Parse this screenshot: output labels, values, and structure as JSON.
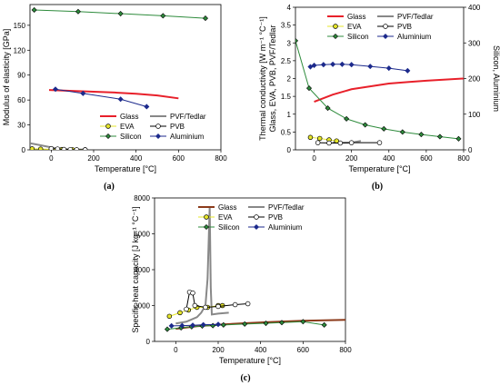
{
  "colors": {
    "Glass": "#e8202a",
    "PVF/Tedlar": "#888888",
    "EVA": "#e6e62a",
    "PVB": "#ffffff",
    "Silicon": "#2e8b3c",
    "Aluminium": "#1c2a8c",
    "GlassC": "#8b3a1a"
  },
  "chart_data": [
    {
      "panel": "(a)",
      "type": "line",
      "xlabel": "Temperature  [°C]",
      "ylabel": "Modulus of elasticity  [GPa]",
      "xlim": [
        -100,
        800
      ],
      "ylim": [
        0,
        175
      ],
      "xticks": [
        0,
        200,
        400,
        600,
        800
      ],
      "yticks": [
        0,
        30,
        60,
        90,
        120,
        150
      ],
      "legend": [
        [
          "Glass",
          "PVF/Tedlar"
        ],
        [
          "EVA",
          "PVB"
        ],
        [
          "Silicon",
          "Aluminium"
        ]
      ],
      "series": [
        {
          "name": "Glass",
          "marker": "none",
          "points": [
            [
              -10,
              72
            ],
            [
              100,
              71
            ],
            [
              200,
              70
            ],
            [
              300,
              69
            ],
            [
              400,
              67.5
            ],
            [
              500,
              65.5
            ],
            [
              600,
              62
            ]
          ]
        },
        {
          "name": "PVF/Tedlar",
          "marker": "none",
          "points": [
            [
              -100,
              8
            ],
            [
              -60,
              6
            ],
            [
              -20,
              4
            ],
            [
              20,
              2
            ],
            [
              60,
              1
            ],
            [
              100,
              0.5
            ],
            [
              150,
              0.3
            ]
          ]
        },
        {
          "name": "EVA",
          "marker": "circle",
          "points": [
            [
              -90,
              1.2
            ],
            [
              -50,
              0.9
            ],
            [
              0,
              0.6
            ],
            [
              50,
              0.4
            ],
            [
              100,
              0.2
            ],
            [
              160,
              0.1
            ]
          ]
        },
        {
          "name": "PVB",
          "marker": "circle",
          "points": [
            [
              0,
              1.5
            ],
            [
              30,
              1
            ],
            [
              60,
              0.5
            ],
            [
              90,
              0.3
            ],
            [
              120,
              0.1
            ],
            [
              160,
              0
            ]
          ]
        },
        {
          "name": "Silicon",
          "marker": "diamond",
          "points": [
            [
              -80,
              168.5
            ],
            [
              127,
              166.5
            ],
            [
              327,
              164
            ],
            [
              527,
              161.5
            ],
            [
              727,
              158.5
            ]
          ]
        },
        {
          "name": "Aluminium",
          "marker": "diamond",
          "points": [
            [
              20,
              73
            ],
            [
              150,
              68
            ],
            [
              327,
              61
            ],
            [
              450,
              52
            ]
          ]
        }
      ]
    },
    {
      "panel": "(b)",
      "type": "line",
      "xlabel": "Temperature  [°C]",
      "ylabel": "Thermal conductivity  [W m⁻¹ °C⁻¹]",
      "ylabel2": "Glass, EVA, PVB, PVF/Tedlar",
      "yrlabel": "Silicon, Aluminium",
      "xlim": [
        -100,
        800
      ],
      "ylim": [
        0,
        4
      ],
      "yrlim": [
        0,
        400
      ],
      "xticks": [
        0,
        200,
        400,
        600,
        800
      ],
      "yticks": [
        0,
        0.5,
        1,
        1.5,
        2,
        2.5,
        3,
        3.5,
        4
      ],
      "yrticks": [
        0,
        100,
        200,
        300,
        400
      ],
      "legend": [
        [
          "Glass",
          "PVF/Tedlar"
        ],
        [
          "EVA",
          "PVB"
        ],
        [
          "Silicon",
          "Aluminium"
        ]
      ],
      "series": [
        {
          "name": "Glass",
          "axis": "left",
          "marker": "none",
          "points": [
            [
              0,
              1.35
            ],
            [
              100,
              1.55
            ],
            [
              200,
              1.7
            ],
            [
              300,
              1.78
            ],
            [
              400,
              1.86
            ],
            [
              500,
              1.9
            ],
            [
              600,
              1.94
            ],
            [
              800,
              2.0
            ]
          ]
        },
        {
          "name": "PVF/Tedlar",
          "axis": "left",
          "marker": "none",
          "points": [
            [
              100,
              0.2
            ],
            [
              150,
              0.2
            ],
            [
              200,
              0.2
            ],
            [
              250,
              0.25
            ]
          ]
        },
        {
          "name": "EVA",
          "axis": "left",
          "marker": "circle",
          "points": [
            [
              -20,
              0.35
            ],
            [
              30,
              0.32
            ],
            [
              80,
              0.28
            ],
            [
              120,
              0.25
            ]
          ]
        },
        {
          "name": "PVB",
          "axis": "left",
          "marker": "circle",
          "points": [
            [
              20,
              0.2
            ],
            [
              80,
              0.19
            ],
            [
              140,
              0.19
            ],
            [
              200,
              0.2
            ],
            [
              350,
              0.2
            ]
          ]
        },
        {
          "name": "Silicon",
          "axis": "right",
          "marker": "diamond",
          "points": [
            [
              -100,
              306
            ],
            [
              -27,
              173
            ],
            [
              73,
              117
            ],
            [
              173,
              87
            ],
            [
              273,
              70
            ],
            [
              373,
              59
            ],
            [
              473,
              50
            ],
            [
              573,
              43
            ],
            [
              673,
              37
            ],
            [
              773,
              31
            ]
          ]
        },
        {
          "name": "Aluminium",
          "axis": "right",
          "marker": "diamond",
          "points": [
            [
              -20,
              233
            ],
            [
              0,
              237
            ],
            [
              50,
              239
            ],
            [
              100,
              240
            ],
            [
              150,
              240
            ],
            [
              200,
              239
            ],
            [
              300,
              234
            ],
            [
              400,
              229
            ],
            [
              500,
              222
            ]
          ]
        }
      ]
    },
    {
      "panel": "(c)",
      "type": "line",
      "xlabel": "Temperature  [°C]",
      "ylabel": "Specific heat capacity  [J kg⁻¹ °C⁻¹]",
      "xlim": [
        -100,
        800
      ],
      "ylim": [
        0,
        8000
      ],
      "xticks": [
        0,
        200,
        400,
        600,
        800
      ],
      "yticks": [
        0,
        2000,
        4000,
        6000,
        8000
      ],
      "legend": [
        [
          "Glass",
          "PVF/Tedlar"
        ],
        [
          "EVA",
          "PVB"
        ],
        [
          "Silicon",
          "Aluminium"
        ]
      ],
      "series": [
        {
          "name": "Glass",
          "marker": "none",
          "points": [
            [
              0,
              700
            ],
            [
              100,
              850
            ],
            [
              200,
              930
            ],
            [
              300,
              1000
            ],
            [
              400,
              1060
            ],
            [
              500,
              1110
            ],
            [
              600,
              1150
            ],
            [
              700,
              1180
            ],
            [
              800,
              1200
            ]
          ]
        },
        {
          "name": "PVF/Tedlar",
          "marker": "none",
          "points": [
            [
              0,
              1000
            ],
            [
              50,
              1100
            ],
            [
              100,
              1350
            ],
            [
              120,
              1600
            ],
            [
              140,
              2000
            ],
            [
              150,
              3500
            ],
            [
              160,
              7500
            ],
            [
              165,
              3000
            ],
            [
              170,
              1500
            ],
            [
              200,
              1550
            ],
            [
              250,
              1600
            ]
          ]
        },
        {
          "name": "EVA",
          "marker": "circle",
          "points": [
            [
              -30,
              1400
            ],
            [
              20,
              1600
            ],
            [
              60,
              1750
            ],
            [
              100,
              1900
            ],
            [
              150,
              1900
            ],
            [
              200,
              2000
            ],
            [
              220,
              2000
            ]
          ]
        },
        {
          "name": "PVB",
          "marker": "circle",
          "points": [
            [
              50,
              1800
            ],
            [
              65,
              2750
            ],
            [
              80,
              2700
            ],
            [
              90,
              2000
            ],
            [
              140,
              1900
            ],
            [
              200,
              1950
            ],
            [
              280,
              2050
            ],
            [
              340,
              2100
            ]
          ]
        },
        {
          "name": "Silicon",
          "marker": "diamond",
          "points": [
            [
              -40,
              680
            ],
            [
              25,
              760
            ],
            [
              75,
              820
            ],
            [
              125,
              860
            ],
            [
              175,
              880
            ],
            [
              225,
              920
            ],
            [
              325,
              970
            ],
            [
              425,
              1010
            ],
            [
              500,
              1050
            ],
            [
              600,
              1100
            ],
            [
              700,
              920
            ]
          ]
        },
        {
          "name": "Aluminium",
          "marker": "diamond",
          "points": [
            [
              -20,
              870
            ],
            [
              30,
              880
            ],
            [
              80,
              900
            ],
            [
              130,
              930
            ],
            [
              200,
              950
            ]
          ]
        }
      ]
    }
  ]
}
